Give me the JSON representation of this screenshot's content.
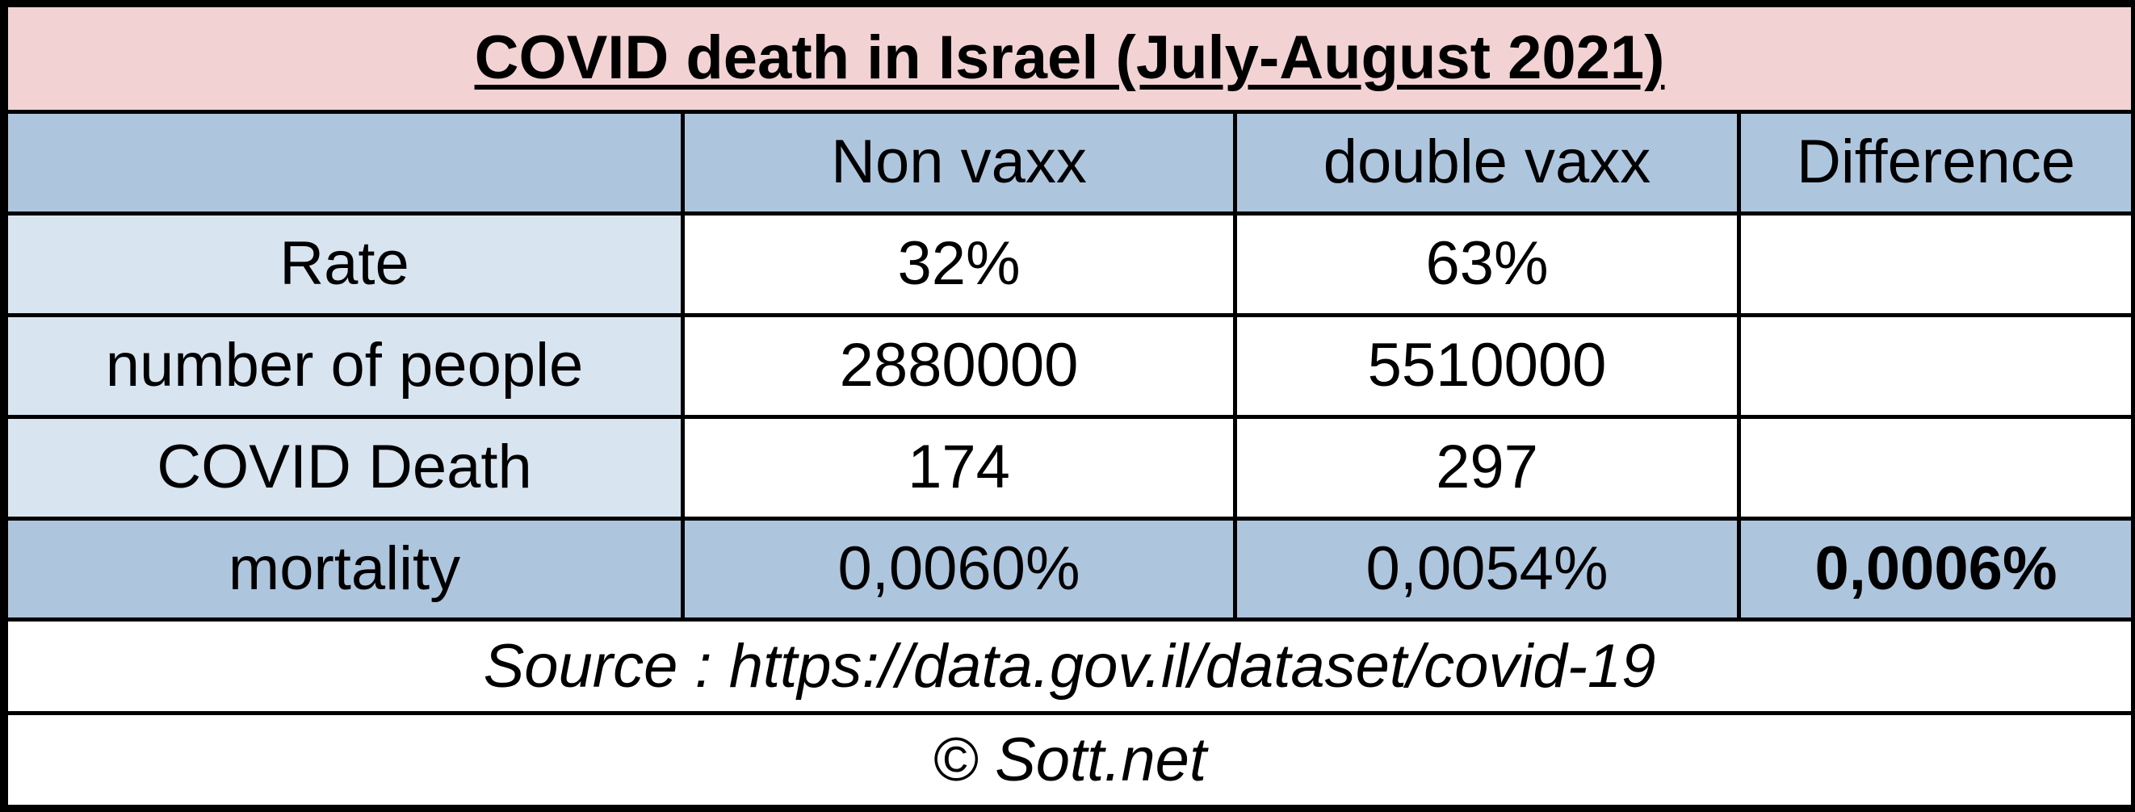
{
  "chart_data": {
    "type": "table",
    "title": "COVID death in Israel (July-August 2021)",
    "columns": [
      "",
      "Non vaxx",
      "double vaxx",
      "Difference"
    ],
    "rows": [
      {
        "label": "Rate",
        "values": [
          "32%",
          "63%",
          ""
        ]
      },
      {
        "label": "number of people",
        "values": [
          "2880000",
          "5510000",
          ""
        ]
      },
      {
        "label": "COVID Death",
        "values": [
          "174",
          "297",
          ""
        ]
      },
      {
        "label": "mortality",
        "values": [
          "0,0060%",
          "0,0054%",
          "0,0006%"
        ]
      }
    ],
    "source": "Source : https://data.gov.il/dataset/covid-19",
    "credit": "© Sott.net"
  },
  "colors": {
    "title_bg": "#f2d2d3",
    "header_bg": "#aec5de",
    "label_bg": "#d8e4ef",
    "cell_bg": "#ffffff",
    "border": "#000000"
  }
}
